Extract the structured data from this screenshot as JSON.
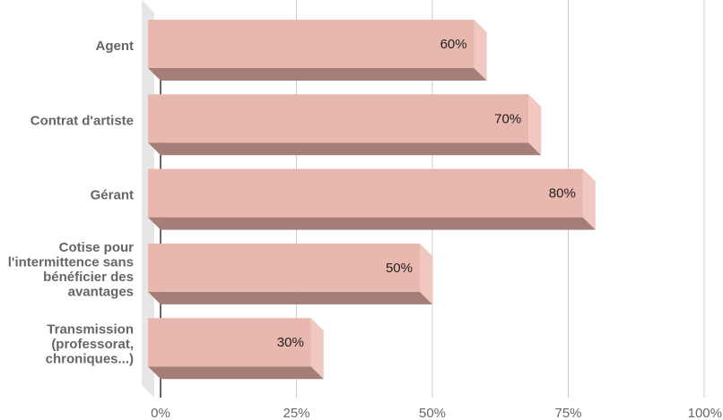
{
  "chart_data": {
    "type": "bar",
    "orientation": "horizontal",
    "style": "3d",
    "categories": [
      "Agent",
      "Contrat d'artiste",
      "Gérant",
      "Cotise pour l'intermittence sans bénéficier des avantages",
      "Transmission (professorat, chroniques...)"
    ],
    "category_lines": [
      [
        "Agent"
      ],
      [
        "Contrat d'artiste"
      ],
      [
        "Gérant"
      ],
      [
        "Cotise pour",
        "l'intermittence sans",
        "bénéficier des",
        "avantages"
      ],
      [
        "Transmission",
        "(professorat,",
        "chroniques...)"
      ]
    ],
    "values": [
      60,
      70,
      80,
      50,
      30
    ],
    "data_labels": [
      "60%",
      "70%",
      "80%",
      "50%",
      "30%"
    ],
    "xlim": [
      0,
      100
    ],
    "xticks": [
      0,
      25,
      50,
      75,
      100
    ],
    "xtick_labels": [
      "0%",
      "25%",
      "50%",
      "75%",
      "100%"
    ],
    "grid": true,
    "legend": "none",
    "colors": {
      "bar_front": "#e8b7ae",
      "bar_side": "#f0c8c0",
      "bar_bottom": "#a47e77",
      "grid": "#cccccc",
      "floor": "#e6e6e6",
      "axis": "#333333"
    }
  }
}
